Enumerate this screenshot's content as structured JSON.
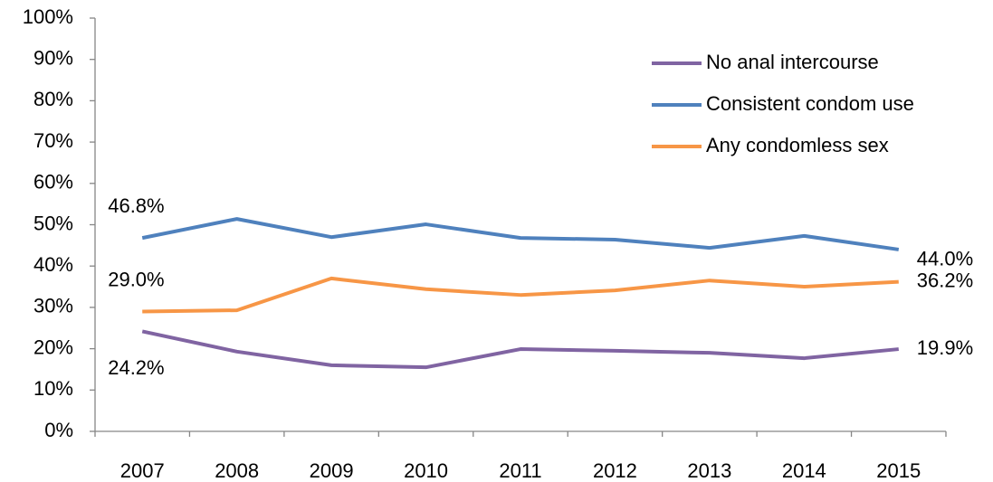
{
  "chart_data": {
    "type": "line",
    "categories": [
      "2007",
      "2008",
      "2009",
      "2010",
      "2011",
      "2012",
      "2013",
      "2014",
      "2015"
    ],
    "series": [
      {
        "name": "No anal intercourse",
        "color": "#8064a2",
        "values": [
          24.2,
          19.3,
          16.0,
          15.5,
          19.9,
          19.5,
          19.0,
          17.7,
          19.9
        ],
        "value_labels": [
          "24.2%",
          null,
          null,
          null,
          null,
          null,
          null,
          null,
          "19.9%"
        ]
      },
      {
        "name": "Consistent condom use",
        "color": "#4f81bd",
        "values": [
          46.8,
          51.4,
          47.0,
          50.1,
          46.8,
          46.4,
          44.4,
          47.3,
          44.0
        ],
        "value_labels": [
          "46.8%",
          null,
          null,
          null,
          null,
          null,
          null,
          null,
          "44.0%"
        ]
      },
      {
        "name": "Any condomless sex",
        "color": "#f79646",
        "values": [
          29.0,
          29.3,
          37.0,
          34.4,
          33.0,
          34.1,
          36.5,
          35.0,
          36.2
        ],
        "value_labels": [
          "29.0%",
          null,
          null,
          null,
          null,
          null,
          null,
          null,
          "36.2%"
        ]
      }
    ],
    "ylim": [
      0,
      100
    ],
    "yticks": [
      {
        "value": 0,
        "label": "0%"
      },
      {
        "value": 10,
        "label": "10%"
      },
      {
        "value": 20,
        "label": "20%"
      },
      {
        "value": 30,
        "label": "30%"
      },
      {
        "value": 40,
        "label": "40%"
      },
      {
        "value": 50,
        "label": "50%"
      },
      {
        "value": 60,
        "label": "60%"
      },
      {
        "value": 70,
        "label": "70%"
      },
      {
        "value": 80,
        "label": "80%"
      },
      {
        "value": 90,
        "label": "90%"
      },
      {
        "value": 100,
        "label": "100%"
      }
    ],
    "grid": false,
    "legend": "top-right"
  }
}
